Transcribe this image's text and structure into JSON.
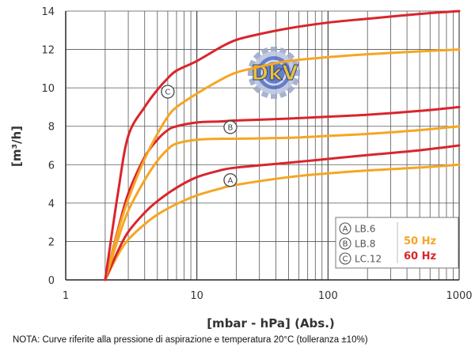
{
  "chart_data": {
    "type": "line",
    "xscale": "log",
    "xlim": [
      1,
      1000
    ],
    "ylim": [
      0,
      14
    ],
    "xticks": [
      "1",
      "10",
      "100",
      "1000"
    ],
    "yticks": [
      "0",
      "2",
      "4",
      "6",
      "8",
      "10",
      "12",
      "14"
    ],
    "xlabel": "[mbar - hPa] (Abs.)",
    "ylabel": "[m³/h]",
    "grid": true,
    "legend_position": "bottom-right",
    "legend": {
      "models": [
        {
          "letter": "A",
          "name": "LB.6"
        },
        {
          "letter": "B",
          "name": "LB.8"
        },
        {
          "letter": "C",
          "name": "LC.12"
        }
      ],
      "frequencies": [
        {
          "label": "50 Hz",
          "color": "#f5a623"
        },
        {
          "label": "60 Hz",
          "color": "#d9252c"
        }
      ]
    },
    "series": [
      {
        "model": "A",
        "freq": "50 Hz",
        "color": "#f5a623",
        "x": [
          2,
          2.5,
          3,
          4,
          5,
          7,
          10,
          15,
          20,
          50,
          100,
          200,
          500,
          1000
        ],
        "y": [
          0,
          1.3,
          2.1,
          2.9,
          3.4,
          3.95,
          4.4,
          4.75,
          4.95,
          5.35,
          5.55,
          5.7,
          5.85,
          6.0
        ]
      },
      {
        "model": "A",
        "freq": "60 Hz",
        "color": "#d9252c",
        "x": [
          2,
          2.5,
          3,
          4,
          5,
          7,
          10,
          15,
          20,
          50,
          100,
          200,
          500,
          1000
        ],
        "y": [
          0,
          1.5,
          2.5,
          3.5,
          4.1,
          4.8,
          5.35,
          5.7,
          5.85,
          6.1,
          6.3,
          6.5,
          6.75,
          7.0
        ]
      },
      {
        "model": "B",
        "freq": "50 Hz",
        "color": "#f5a623",
        "x": [
          2,
          2.5,
          3,
          4,
          5,
          6,
          7,
          10,
          15,
          20,
          50,
          100,
          200,
          500,
          1000
        ],
        "y": [
          0,
          2.1,
          3.6,
          5.2,
          6.2,
          6.8,
          7.1,
          7.3,
          7.35,
          7.35,
          7.4,
          7.5,
          7.6,
          7.8,
          8.0
        ]
      },
      {
        "model": "B",
        "freq": "60 Hz",
        "color": "#d9252c",
        "x": [
          2,
          2.5,
          3,
          4,
          5,
          6,
          7,
          10,
          15,
          20,
          50,
          100,
          200,
          500,
          1000
        ],
        "y": [
          0,
          2.6,
          4.5,
          6.4,
          7.3,
          7.8,
          8.0,
          8.2,
          8.25,
          8.3,
          8.4,
          8.5,
          8.6,
          8.8,
          9.0
        ]
      },
      {
        "model": "C",
        "freq": "50 Hz",
        "color": "#f5a623",
        "x": [
          2,
          2.5,
          3,
          4,
          5,
          6,
          7,
          10,
          15,
          20,
          30,
          50,
          100,
          200,
          500,
          1000
        ],
        "y": [
          0,
          2.5,
          4.2,
          6.3,
          7.6,
          8.5,
          9.0,
          9.7,
          10.4,
          10.8,
          11.1,
          11.4,
          11.6,
          11.75,
          11.9,
          12.0
        ]
      },
      {
        "model": "C",
        "freq": "60 Hz",
        "color": "#d9252c",
        "x": [
          2,
          2.5,
          3,
          4,
          5,
          6,
          7,
          10,
          15,
          20,
          30,
          50,
          100,
          200,
          500,
          1000
        ],
        "y": [
          0,
          4.5,
          7.5,
          9.0,
          9.9,
          10.5,
          10.9,
          11.4,
          12.1,
          12.5,
          12.8,
          13.1,
          13.4,
          13.6,
          13.85,
          14.0
        ]
      }
    ],
    "curve_markers": [
      {
        "letter": "C",
        "x": 6,
        "y": 9.8
      },
      {
        "letter": "B",
        "x": 18,
        "y": 7.95
      },
      {
        "letter": "A",
        "x": 18,
        "y": 5.2
      }
    ],
    "watermark_logo": "DkV"
  },
  "note": "NOTA:  Curve riferite alla pressione di aspirazione e temperatura 20°C (tolleranza ±10%)"
}
